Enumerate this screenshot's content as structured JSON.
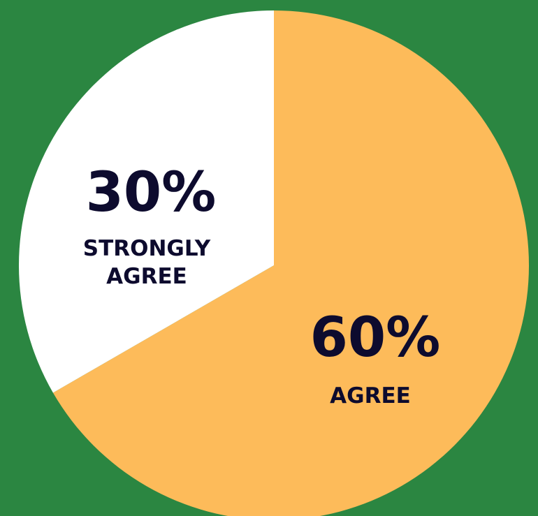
{
  "colors": {
    "background": "#2b8641",
    "text": "#0d0b2e"
  },
  "chart_data": {
    "type": "pie",
    "start_angle_deg": 0,
    "direction": "clockwise",
    "slices": [
      {
        "value": 60,
        "pct_label": "60%",
        "label_lines": [
          "AGREE"
        ],
        "color": "#fdbb5a"
      },
      {
        "value": 30,
        "pct_label": "30%",
        "label_lines": [
          "STRONGLY",
          "AGREE"
        ],
        "color": "#ffffff"
      }
    ]
  }
}
